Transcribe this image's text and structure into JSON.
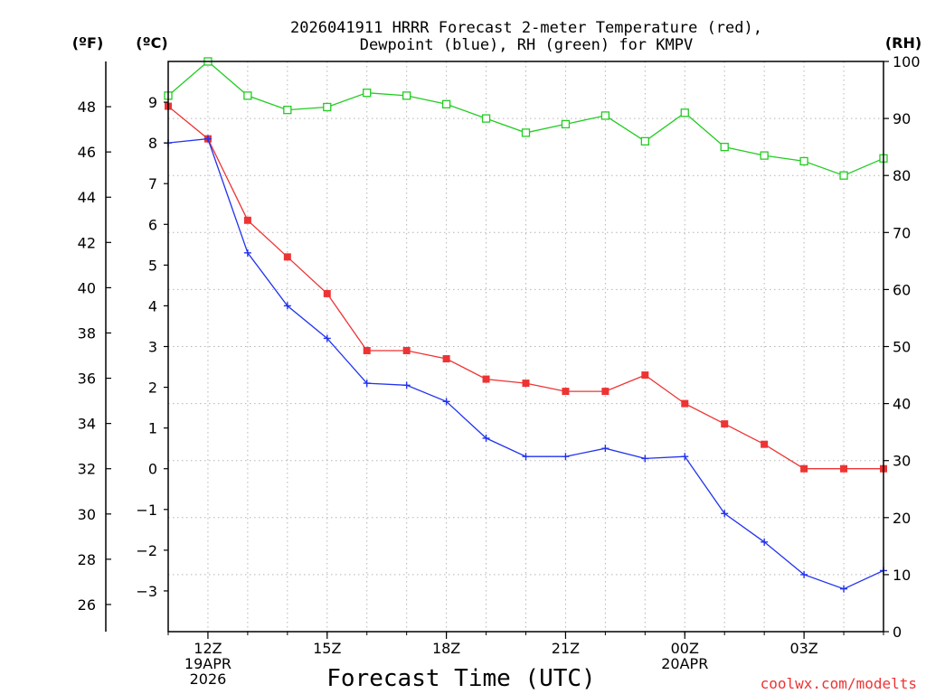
{
  "chart_data": {
    "type": "line",
    "title_line1": "2026041911 HRRR Forecast 2-meter Temperature (red),",
    "title_line2": "Dewpoint (blue), RH (green) for KMPV",
    "xlabel": "Forecast Time (UTC)",
    "credit": "coolwx.com/modelts",
    "axis_titles": {
      "fahrenheit": "(ºF)",
      "celsius": "(ºC)",
      "rh": "(RH)"
    },
    "x_hours": [
      11,
      12,
      13,
      14,
      15,
      16,
      17,
      18,
      19,
      20,
      21,
      22,
      23,
      24,
      25,
      26,
      27,
      28,
      29
    ],
    "x_ticks": [
      {
        "hour": 12,
        "lines": [
          "12Z",
          "19APR",
          "2026"
        ]
      },
      {
        "hour": 15,
        "lines": [
          "15Z"
        ]
      },
      {
        "hour": 18,
        "lines": [
          "18Z"
        ]
      },
      {
        "hour": 21,
        "lines": [
          "21Z"
        ]
      },
      {
        "hour": 24,
        "lines": [
          "00Z",
          "20APR"
        ]
      },
      {
        "hour": 27,
        "lines": [
          "03Z"
        ]
      }
    ],
    "celsius_range": [
      -4,
      10
    ],
    "celsius_ticks": [
      -3,
      -2,
      -1,
      0,
      1,
      2,
      3,
      4,
      5,
      6,
      7,
      8,
      9
    ],
    "fahrenheit_ticks": [
      26,
      28,
      30,
      32,
      34,
      36,
      38,
      40,
      42,
      44,
      46,
      48
    ],
    "rh_range": [
      0,
      100
    ],
    "rh_ticks": [
      0,
      10,
      20,
      30,
      40,
      50,
      60,
      70,
      80,
      90,
      100
    ],
    "series": [
      {
        "name": "Temperature",
        "unit": "C",
        "axis": "celsius",
        "color": "#ee3333",
        "marker": "filled-square",
        "values": [
          8.9,
          8.1,
          6.1,
          5.2,
          4.3,
          2.9,
          2.9,
          2.7,
          2.2,
          2.1,
          1.9,
          1.9,
          2.3,
          1.6,
          1.1,
          0.6,
          0.0,
          0.0,
          0.0
        ]
      },
      {
        "name": "Dewpoint",
        "unit": "C",
        "axis": "celsius",
        "color": "#2233ee",
        "marker": "plus",
        "values": [
          8.0,
          8.1,
          5.3,
          4.0,
          3.2,
          2.1,
          2.05,
          1.65,
          0.75,
          0.3,
          0.3,
          0.5,
          0.25,
          0.3,
          -1.1,
          -1.8,
          -2.6,
          -2.95,
          -2.5
        ]
      },
      {
        "name": "RH",
        "unit": "%",
        "axis": "rh",
        "color": "#22cc22",
        "marker": "open-square",
        "values": [
          94,
          100,
          94,
          91.5,
          92,
          94.5,
          94,
          92.5,
          90,
          87.5,
          89,
          90.5,
          86,
          91,
          85,
          83.5,
          82.5,
          80,
          83
        ]
      }
    ]
  }
}
